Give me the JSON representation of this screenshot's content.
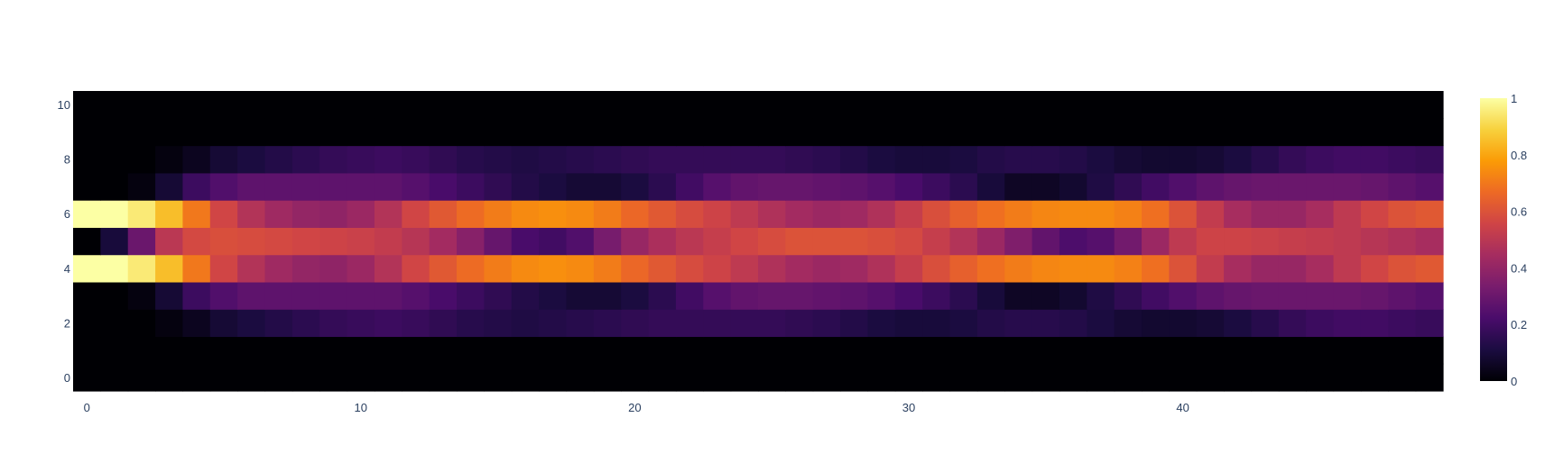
{
  "chart_data": {
    "type": "heatmap",
    "title": "",
    "xlabel": "",
    "ylabel": "",
    "colorscale": "Inferno",
    "colorscale_stops": [
      "#000004",
      "#1b0c41",
      "#4a0c6b",
      "#781c6d",
      "#a52c60",
      "#cf4446",
      "#ed6925",
      "#fb9b06",
      "#f7d13d",
      "#fcffa4"
    ],
    "zmin": 0,
    "zmax": 1,
    "x": [
      0,
      1,
      2,
      3,
      4,
      5,
      6,
      7,
      8,
      9,
      10,
      11,
      12,
      13,
      14,
      15,
      16,
      17,
      18,
      19,
      20,
      21,
      22,
      23,
      24,
      25,
      26,
      27,
      28,
      29,
      30,
      31,
      32,
      33,
      34,
      35,
      36,
      37,
      38,
      39,
      40,
      41,
      42,
      43,
      44,
      45,
      46,
      47,
      48,
      49
    ],
    "y": [
      0,
      1,
      2,
      3,
      4,
      5,
      6,
      7,
      8,
      9,
      10
    ],
    "xlim": [
      -0.5,
      49.5
    ],
    "ylim": [
      -0.5,
      10.5
    ],
    "xticks": [
      0,
      10,
      20,
      30,
      40
    ],
    "yticks": [
      0,
      2,
      4,
      6,
      8,
      10
    ],
    "colorbar_ticks": [
      0,
      0.2,
      0.4,
      0.6,
      0.8,
      1
    ],
    "z": [
      [
        0,
        0,
        0,
        0,
        0,
        0,
        0,
        0,
        0,
        0,
        0,
        0,
        0,
        0,
        0,
        0,
        0,
        0,
        0,
        0,
        0,
        0,
        0,
        0,
        0,
        0,
        0,
        0,
        0,
        0,
        0,
        0,
        0,
        0,
        0,
        0,
        0,
        0,
        0,
        0,
        0,
        0,
        0,
        0,
        0,
        0,
        0,
        0,
        0,
        0
      ],
      [
        0,
        0,
        0,
        0,
        0,
        0,
        0,
        0,
        0,
        0,
        0,
        0,
        0,
        0,
        0,
        0,
        0,
        0,
        0,
        0,
        0,
        0,
        0,
        0,
        0,
        0,
        0,
        0,
        0,
        0,
        0,
        0,
        0,
        0,
        0,
        0,
        0,
        0,
        0,
        0,
        0,
        0,
        0,
        0,
        0,
        0,
        0,
        0,
        0,
        0
      ],
      [
        0,
        0,
        0,
        0.02,
        0.05,
        0.09,
        0.11,
        0.13,
        0.15,
        0.17,
        0.18,
        0.19,
        0.18,
        0.16,
        0.14,
        0.13,
        0.12,
        0.13,
        0.14,
        0.15,
        0.16,
        0.17,
        0.17,
        0.17,
        0.17,
        0.17,
        0.16,
        0.15,
        0.13,
        0.11,
        0.1,
        0.1,
        0.11,
        0.13,
        0.14,
        0.14,
        0.13,
        0.11,
        0.09,
        0.08,
        0.08,
        0.09,
        0.11,
        0.14,
        0.17,
        0.19,
        0.2,
        0.2,
        0.19,
        0.18
      ],
      [
        0,
        0,
        0.02,
        0.09,
        0.19,
        0.24,
        0.27,
        0.27,
        0.27,
        0.27,
        0.27,
        0.27,
        0.25,
        0.22,
        0.19,
        0.16,
        0.13,
        0.11,
        0.09,
        0.09,
        0.11,
        0.15,
        0.2,
        0.25,
        0.28,
        0.29,
        0.29,
        0.28,
        0.27,
        0.25,
        0.22,
        0.19,
        0.15,
        0.1,
        0.06,
        0.06,
        0.08,
        0.12,
        0.16,
        0.2,
        0.24,
        0.27,
        0.29,
        0.3,
        0.3,
        0.3,
        0.3,
        0.29,
        0.27,
        0.25
      ],
      [
        1,
        1,
        0.95,
        0.85,
        0.7,
        0.56,
        0.48,
        0.43,
        0.4,
        0.39,
        0.42,
        0.48,
        0.56,
        0.62,
        0.67,
        0.71,
        0.74,
        0.75,
        0.74,
        0.71,
        0.66,
        0.62,
        0.58,
        0.55,
        0.51,
        0.47,
        0.44,
        0.42,
        0.43,
        0.47,
        0.53,
        0.59,
        0.64,
        0.68,
        0.71,
        0.73,
        0.74,
        0.74,
        0.72,
        0.68,
        0.6,
        0.52,
        0.45,
        0.41,
        0.41,
        0.45,
        0.51,
        0.56,
        0.6,
        0.62
      ],
      [
        0,
        0.1,
        0.3,
        0.5,
        0.57,
        0.59,
        0.58,
        0.57,
        0.56,
        0.55,
        0.54,
        0.52,
        0.49,
        0.44,
        0.37,
        0.29,
        0.22,
        0.2,
        0.24,
        0.33,
        0.41,
        0.46,
        0.5,
        0.53,
        0.56,
        0.58,
        0.6,
        0.6,
        0.6,
        0.59,
        0.57,
        0.53,
        0.48,
        0.42,
        0.35,
        0.28,
        0.23,
        0.25,
        0.32,
        0.42,
        0.51,
        0.55,
        0.55,
        0.54,
        0.53,
        0.52,
        0.51,
        0.49,
        0.47,
        0.45
      ],
      [
        1,
        1,
        0.95,
        0.85,
        0.7,
        0.56,
        0.48,
        0.43,
        0.4,
        0.39,
        0.42,
        0.48,
        0.56,
        0.62,
        0.67,
        0.71,
        0.74,
        0.75,
        0.74,
        0.71,
        0.66,
        0.62,
        0.58,
        0.55,
        0.51,
        0.47,
        0.44,
        0.42,
        0.43,
        0.47,
        0.53,
        0.59,
        0.64,
        0.68,
        0.71,
        0.73,
        0.74,
        0.74,
        0.72,
        0.68,
        0.6,
        0.52,
        0.45,
        0.41,
        0.41,
        0.45,
        0.51,
        0.56,
        0.6,
        0.62
      ],
      [
        0,
        0,
        0.02,
        0.09,
        0.19,
        0.24,
        0.27,
        0.27,
        0.27,
        0.27,
        0.27,
        0.27,
        0.25,
        0.22,
        0.19,
        0.16,
        0.13,
        0.11,
        0.09,
        0.09,
        0.11,
        0.15,
        0.2,
        0.25,
        0.28,
        0.29,
        0.29,
        0.28,
        0.27,
        0.25,
        0.22,
        0.19,
        0.15,
        0.1,
        0.06,
        0.06,
        0.08,
        0.12,
        0.16,
        0.2,
        0.24,
        0.27,
        0.29,
        0.3,
        0.3,
        0.3,
        0.3,
        0.29,
        0.27,
        0.25
      ],
      [
        0,
        0,
        0,
        0.02,
        0.05,
        0.09,
        0.11,
        0.13,
        0.15,
        0.17,
        0.18,
        0.19,
        0.18,
        0.16,
        0.14,
        0.13,
        0.12,
        0.13,
        0.14,
        0.15,
        0.16,
        0.17,
        0.17,
        0.17,
        0.17,
        0.17,
        0.16,
        0.15,
        0.13,
        0.11,
        0.1,
        0.1,
        0.11,
        0.13,
        0.14,
        0.14,
        0.13,
        0.11,
        0.09,
        0.08,
        0.08,
        0.09,
        0.11,
        0.14,
        0.17,
        0.19,
        0.2,
        0.2,
        0.19,
        0.18
      ],
      [
        0,
        0,
        0,
        0,
        0,
        0,
        0,
        0,
        0,
        0,
        0,
        0,
        0,
        0,
        0,
        0,
        0,
        0,
        0,
        0,
        0,
        0,
        0,
        0,
        0,
        0,
        0,
        0,
        0,
        0,
        0,
        0,
        0,
        0,
        0,
        0,
        0,
        0,
        0,
        0,
        0,
        0,
        0,
        0,
        0,
        0,
        0,
        0,
        0,
        0
      ],
      [
        0,
        0,
        0,
        0,
        0,
        0,
        0,
        0,
        0,
        0,
        0,
        0,
        0,
        0,
        0,
        0,
        0,
        0,
        0,
        0,
        0,
        0,
        0,
        0,
        0,
        0,
        0,
        0,
        0,
        0,
        0,
        0,
        0,
        0,
        0,
        0,
        0,
        0,
        0,
        0,
        0,
        0,
        0,
        0,
        0,
        0,
        0,
        0,
        0,
        0
      ]
    ]
  }
}
